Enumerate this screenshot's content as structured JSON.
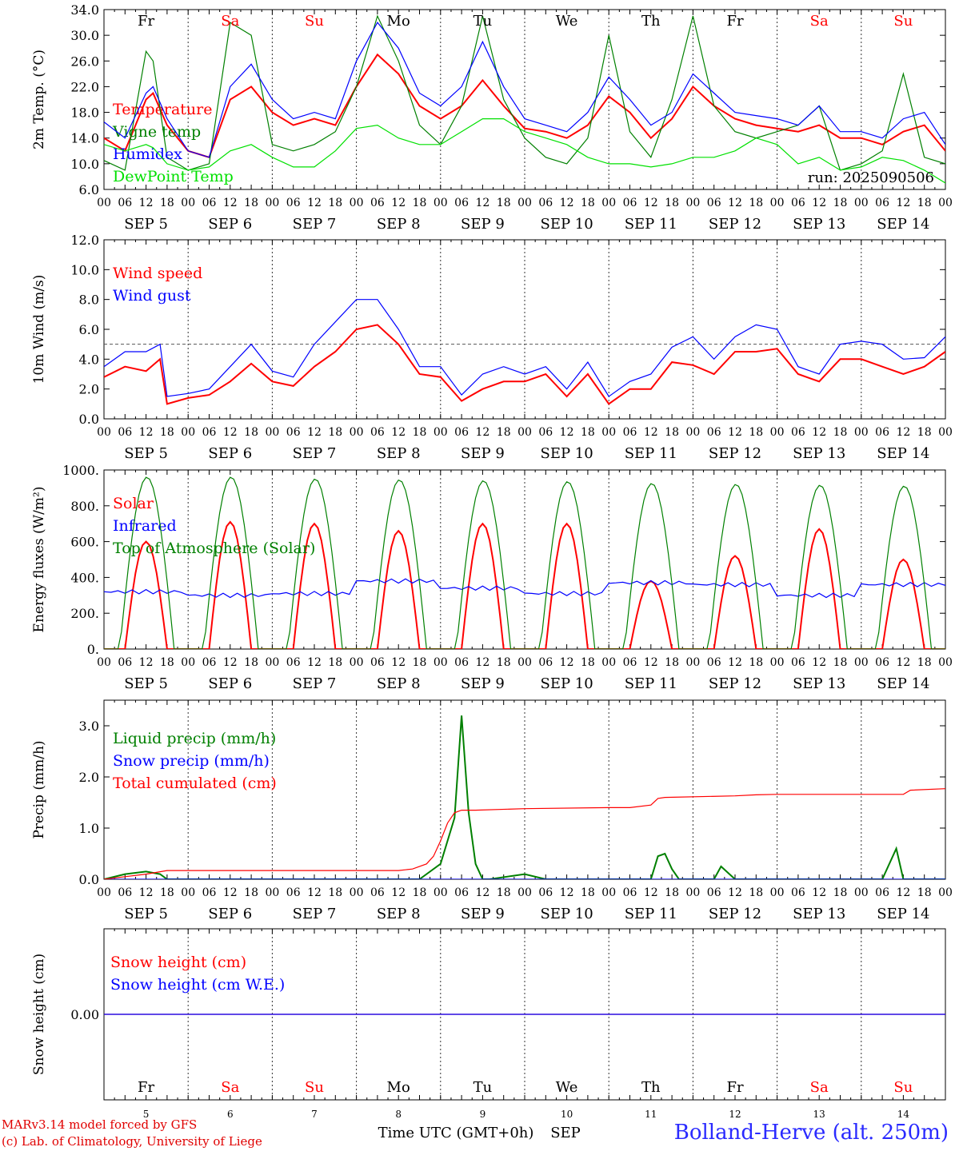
{
  "run_label": "run: 2025090506",
  "days": [
    "Fr",
    "Sa",
    "Su",
    "Mo",
    "Tu",
    "We",
    "Th",
    "Fr",
    "Sa",
    "Su"
  ],
  "day_colors": [
    "#000000",
    "#ff0000",
    "#ff0000",
    "#000000",
    "#000000",
    "#000000",
    "#000000",
    "#000000",
    "#ff0000",
    "#ff0000"
  ],
  "date_labels": [
    "SEP  5",
    "SEP  6",
    "SEP  7",
    "SEP  8",
    "SEP  9",
    "SEP 10",
    "SEP 11",
    "SEP 12",
    "SEP 13",
    "SEP 14"
  ],
  "hour_ticks": [
    "00",
    "06",
    "12",
    "18"
  ],
  "bottom_day_numbers": [
    "5",
    "6",
    "7",
    "8",
    "9",
    "10",
    "11",
    "12",
    "13",
    "14"
  ],
  "xaxis_title": "Time UTC (GMT+0h)",
  "xaxis_month": "SEP",
  "credits": [
    "MARv3.14 model forced by GFS",
    "(c) Lab. of Climatology, University of Liege"
  ],
  "station": "Bolland-Herve (alt. 250m)",
  "colors": {
    "red": "#ff0000",
    "blue": "#0000ff",
    "green": "#008000",
    "lightgreen": "#00e000"
  },
  "chart_data": [
    {
      "type": "line",
      "ylabel": "2m Temp. (°C)",
      "ylim": [
        6,
        34
      ],
      "yticks": [
        "34.0",
        "30.0",
        "26.0",
        "22.0",
        "18.0",
        "14.0",
        "10.0",
        "6.0"
      ],
      "ytick_values": [
        34,
        30,
        26,
        22,
        18,
        14,
        10,
        6
      ],
      "x_range_hours": [
        0,
        240
      ],
      "series": [
        {
          "name": "Temperature",
          "color": "#ff0000",
          "x": [
            0,
            6,
            12,
            14,
            18,
            24,
            30,
            36,
            42,
            48,
            54,
            60,
            66,
            72,
            78,
            84,
            90,
            96,
            102,
            108,
            114,
            120,
            126,
            132,
            138,
            144,
            150,
            156,
            162,
            168,
            174,
            180,
            186,
            192,
            198,
            204,
            210,
            216,
            222,
            228,
            234,
            240
          ],
          "y": [
            14,
            12,
            20,
            21,
            16,
            12,
            11,
            20,
            22,
            18,
            16,
            17,
            16,
            22,
            27,
            24,
            19,
            17,
            19,
            23,
            19,
            15.5,
            15,
            14,
            16,
            20.5,
            18,
            14,
            17,
            22,
            19,
            17,
            16,
            15.5,
            15,
            16,
            14,
            14,
            13,
            15,
            16,
            12
          ]
        },
        {
          "name": "Vigne temp",
          "color": "#008000",
          "x": [
            0,
            6,
            12,
            14,
            18,
            24,
            30,
            36,
            42,
            48,
            54,
            60,
            66,
            72,
            78,
            84,
            90,
            96,
            102,
            108,
            114,
            120,
            126,
            132,
            138,
            144,
            150,
            156,
            162,
            168,
            174,
            180,
            186,
            192,
            198,
            204,
            210,
            216,
            222,
            228,
            234,
            240
          ],
          "y": [
            10.5,
            9,
            27.5,
            26,
            11,
            9,
            10,
            32,
            30,
            13,
            12,
            13,
            15,
            22,
            33,
            26,
            16,
            13,
            19,
            33,
            20,
            14,
            11,
            10,
            14,
            30,
            15,
            11,
            20,
            33,
            19,
            15,
            14,
            15,
            16,
            19,
            9,
            10,
            12,
            24,
            11,
            10
          ]
        },
        {
          "name": "Humidex",
          "color": "#0000ff",
          "x": [
            0,
            6,
            12,
            14,
            18,
            24,
            30,
            36,
            42,
            48,
            54,
            60,
            66,
            72,
            78,
            84,
            90,
            96,
            102,
            108,
            114,
            120,
            126,
            132,
            138,
            144,
            150,
            156,
            162,
            168,
            174,
            180,
            186,
            192,
            198,
            204,
            210,
            216,
            222,
            228,
            234,
            240
          ],
          "y": [
            16.5,
            14,
            21,
            22,
            17,
            12,
            11,
            22,
            25.5,
            20,
            17,
            18,
            17,
            26,
            32,
            28,
            21,
            19,
            22,
            29,
            22,
            17,
            16,
            15,
            18,
            23.5,
            20,
            16,
            18,
            24,
            21,
            18,
            17.5,
            17,
            16,
            19,
            15,
            15,
            14,
            17,
            18,
            13
          ]
        },
        {
          "name": "DewPoint Temp",
          "color": "#00e000",
          "x": [
            0,
            6,
            12,
            14,
            18,
            24,
            30,
            36,
            42,
            48,
            54,
            60,
            66,
            72,
            78,
            84,
            90,
            96,
            102,
            108,
            114,
            120,
            126,
            132,
            138,
            144,
            150,
            156,
            162,
            168,
            174,
            180,
            186,
            192,
            198,
            204,
            210,
            216,
            222,
            228,
            234,
            240
          ],
          "y": [
            13,
            12,
            13,
            12.5,
            10,
            9,
            9.5,
            12,
            13,
            11,
            9.5,
            9.5,
            12,
            15.5,
            16,
            14,
            13,
            13,
            15,
            17,
            17,
            15,
            14,
            13,
            11,
            10,
            10,
            9.5,
            10,
            11,
            11,
            12,
            14,
            13,
            10,
            11,
            9,
            9.5,
            11,
            10.5,
            9,
            7
          ]
        }
      ]
    },
    {
      "type": "line",
      "ylabel": "10m Wind (m/s)",
      "ylim": [
        0,
        12
      ],
      "yticks": [
        "12.0",
        "10.0",
        "8.0",
        "6.0",
        "4.0",
        "2.0",
        "0.0"
      ],
      "ytick_values": [
        12,
        10,
        8,
        6,
        4,
        2,
        0
      ],
      "x_range_hours": [
        0,
        240
      ],
      "reference_line": 5,
      "series": [
        {
          "name": "Wind speed",
          "color": "#ff0000",
          "x": [
            0,
            6,
            12,
            16,
            18,
            24,
            30,
            36,
            42,
            48,
            54,
            60,
            66,
            72,
            78,
            84,
            90,
            96,
            102,
            108,
            114,
            120,
            126,
            132,
            138,
            144,
            150,
            156,
            162,
            168,
            174,
            180,
            186,
            192,
            198,
            204,
            210,
            216,
            222,
            228,
            234,
            240
          ],
          "y": [
            2.8,
            3.5,
            3.2,
            4,
            1,
            1.4,
            1.6,
            2.5,
            3.7,
            2.5,
            2.2,
            3.5,
            4.5,
            6,
            6.3,
            5,
            3,
            2.8,
            1.2,
            2,
            2.5,
            2.5,
            3,
            1.5,
            3,
            1,
            2,
            2,
            3.8,
            3.6,
            3,
            4.5,
            4.5,
            4.7,
            3,
            2.5,
            4,
            4,
            3.5,
            3,
            3.5,
            4.5
          ]
        },
        {
          "name": "Wind gust",
          "color": "#0000ff",
          "x": [
            0,
            6,
            12,
            16,
            18,
            24,
            30,
            36,
            42,
            48,
            54,
            60,
            66,
            72,
            78,
            84,
            90,
            96,
            102,
            108,
            114,
            120,
            126,
            132,
            138,
            144,
            150,
            156,
            162,
            168,
            174,
            180,
            186,
            192,
            198,
            204,
            210,
            216,
            222,
            228,
            234,
            240
          ],
          "y": [
            3.5,
            4.5,
            4.5,
            5,
            1.5,
            1.7,
            2,
            3.5,
            5,
            3.2,
            2.8,
            5,
            6.5,
            8,
            8,
            6,
            3.5,
            3.5,
            1.6,
            3,
            3.5,
            3,
            3.5,
            2,
            3.8,
            1.5,
            2.5,
            3,
            4.8,
            5.5,
            4,
            5.5,
            6.3,
            6,
            3.5,
            3,
            5,
            5.2,
            5,
            4,
            4.1,
            5.5
          ]
        }
      ]
    },
    {
      "type": "line",
      "ylabel": "Energy fluxes (W/m²)",
      "ylim": [
        0,
        1000
      ],
      "yticks": [
        "1000.",
        "800.",
        "600.",
        "400.",
        "200.",
        "0."
      ],
      "ytick_values": [
        1000,
        800,
        600,
        400,
        200,
        0
      ],
      "x_range_hours": [
        0,
        240
      ],
      "series": [
        {
          "name": "Solar",
          "color": "#ff0000",
          "daily_peaks": [
            600,
            710,
            700,
            660,
            700,
            700,
            380,
            520,
            670,
            500
          ]
        },
        {
          "name": "Infrared",
          "color": "#0000ff",
          "daily_values": [
            320,
            300,
            310,
            380,
            340,
            310,
            370,
            360,
            300,
            360
          ]
        },
        {
          "name": "Top of Atmosphere (Solar)",
          "color": "#008000",
          "daily_peaks": [
            960,
            960,
            950,
            945,
            940,
            935,
            925,
            920,
            915,
            910
          ]
        }
      ]
    },
    {
      "type": "line",
      "ylabel": "Precip (mm/h)",
      "ylim": [
        0,
        3.5
      ],
      "yticks": [
        "3.0",
        "2.0",
        "1.0",
        "0.0"
      ],
      "ytick_values": [
        3,
        2,
        1,
        0
      ],
      "x_range_hours": [
        0,
        240
      ],
      "series": [
        {
          "name": "Liquid precip (mm/h)",
          "color": "#008000",
          "x": [
            0,
            6,
            12,
            16,
            18,
            24,
            84,
            90,
            96,
            100,
            102,
            104,
            106,
            108,
            110,
            120,
            126,
            132,
            144,
            150,
            156,
            158,
            160,
            162,
            164,
            168,
            174,
            176,
            180,
            210,
            222,
            226,
            228,
            230,
            240
          ],
          "y": [
            0,
            0.1,
            0.15,
            0.1,
            0,
            0,
            0,
            0,
            0.3,
            1.2,
            3.2,
            1.3,
            0.3,
            0,
            0,
            0.1,
            0,
            0,
            0,
            0,
            0,
            0.45,
            0.5,
            0.2,
            0,
            0,
            0,
            0.25,
            0,
            0,
            0,
            0.6,
            0,
            0,
            0
          ]
        },
        {
          "name": "Snow precip (mm/h)",
          "color": "#0000ff",
          "x": [
            0,
            240
          ],
          "y": [
            0,
            0
          ]
        },
        {
          "name": "Total cumulated (cm)",
          "color": "#ff0000",
          "x": [
            0,
            6,
            12,
            18,
            24,
            48,
            72,
            84,
            88,
            92,
            94,
            96,
            98,
            100,
            102,
            106,
            120,
            144,
            150,
            156,
            158,
            160,
            180,
            186,
            192,
            216,
            228,
            230,
            240
          ],
          "y": [
            0,
            0.05,
            0.1,
            0.17,
            0.17,
            0.17,
            0.17,
            0.17,
            0.2,
            0.3,
            0.45,
            0.75,
            1.1,
            1.3,
            1.35,
            1.35,
            1.38,
            1.4,
            1.4,
            1.45,
            1.58,
            1.6,
            1.63,
            1.65,
            1.66,
            1.66,
            1.66,
            1.74,
            1.77
          ]
        }
      ]
    },
    {
      "type": "line",
      "ylabel": "Snow height (cm)",
      "yticks": [
        "0.00"
      ],
      "ytick_values": [
        0
      ],
      "x_range_hours": [
        0,
        240
      ],
      "series": [
        {
          "name": "Snow height (cm)",
          "color": "#ff0000",
          "x": [
            0,
            240
          ],
          "y": [
            0,
            0
          ]
        },
        {
          "name": "Snow height (cm W.E.)",
          "color": "#0000ff",
          "x": [
            0,
            240
          ],
          "y": [
            0,
            0
          ]
        }
      ]
    }
  ]
}
